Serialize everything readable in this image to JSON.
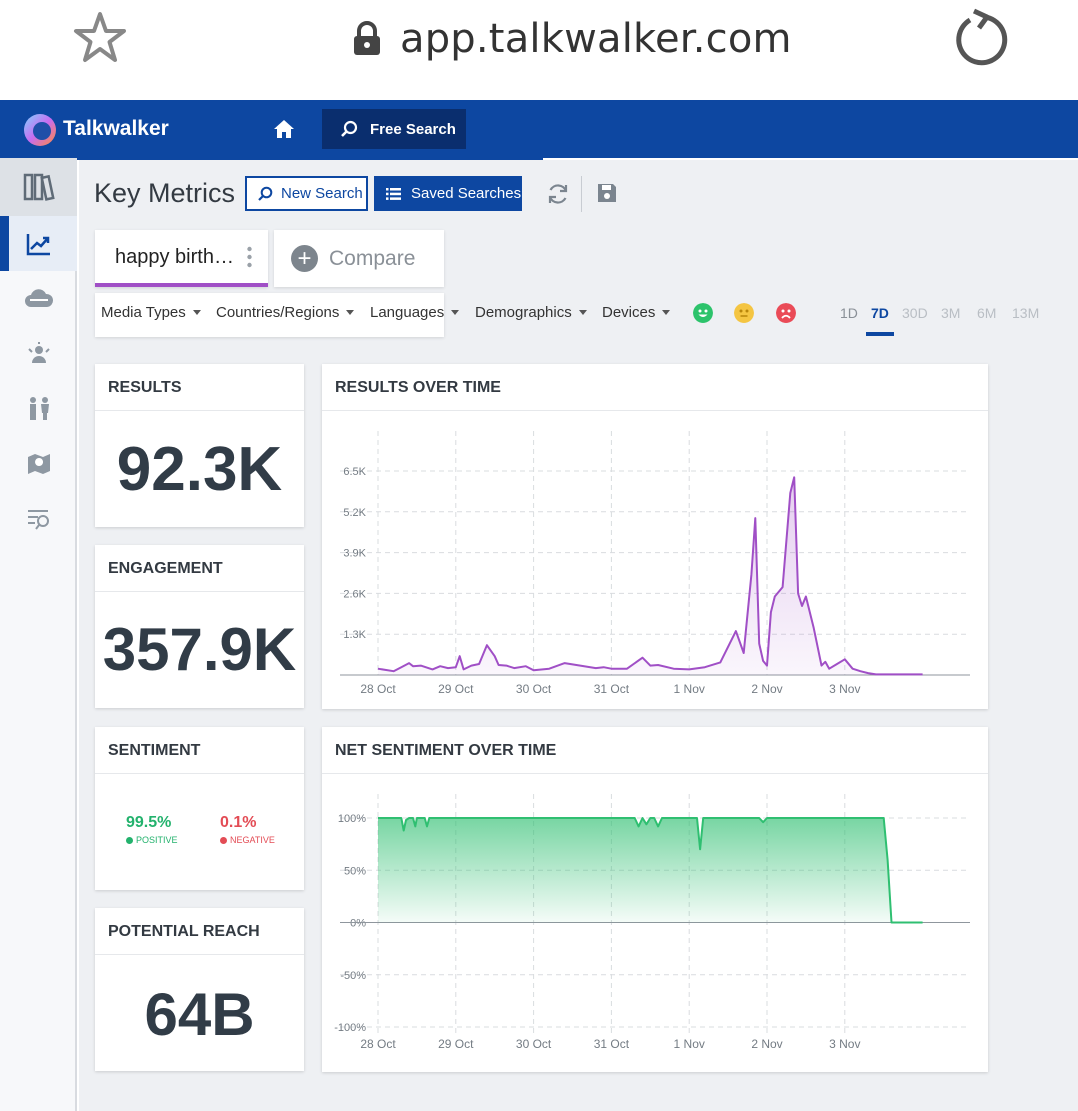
{
  "browser": {
    "url": "app.talkwalker.com"
  },
  "header": {
    "brand": "Talkwalker",
    "free_search_label": "Free Search"
  },
  "page": {
    "title": "Key Metrics",
    "new_search_label": "New Search",
    "saved_searches_label": "Saved Searches",
    "query_tab_label": "happy birth…",
    "compare_label": "Compare"
  },
  "filters": {
    "items": [
      "Media Types",
      "Countries/Regions",
      "Languages",
      "Demographics",
      "Devices"
    ],
    "sentiment_icons": [
      "positive-face-icon",
      "neutral-face-icon",
      "negative-face-icon"
    ],
    "ranges": [
      "1D",
      "7D",
      "30D",
      "3M",
      "6M",
      "13M"
    ],
    "active_range": "7D"
  },
  "metrics": {
    "results": {
      "title": "RESULTS",
      "value": "92.3K"
    },
    "engagement": {
      "title": "ENGAGEMENT",
      "value": "357.9K"
    },
    "sentiment": {
      "title": "SENTIMENT",
      "positive_value": "99.5%",
      "positive_label": "POSITIVE",
      "negative_value": "0.1%",
      "negative_label": "NEGATIVE"
    },
    "reach": {
      "title": "POTENTIAL REACH",
      "value": "64B"
    }
  },
  "colors": {
    "brand": "#0d47a1",
    "results_line": "#a04fc6",
    "sentiment_line": "#2fbf71",
    "positive": "#23b26d",
    "negative": "#e34c55"
  },
  "chart_data": [
    {
      "type": "area",
      "title": "RESULTS OVER TIME",
      "x_tick_labels": [
        "28 Oct",
        "29 Oct",
        "30 Oct",
        "31 Oct",
        "1 Nov",
        "2 Nov",
        "3 Nov"
      ],
      "y_tick_labels": [
        "1.3K",
        "2.6K",
        "3.9K",
        "5.2K",
        "6.5K"
      ],
      "ylim": [
        0,
        6500
      ],
      "xlim": [
        0,
        7.5
      ],
      "grid": true,
      "series": [
        {
          "x": [
            0,
            0.2,
            0.3,
            0.4,
            0.45,
            0.55,
            0.7,
            0.8,
            0.9,
            1.0,
            1.05,
            1.1,
            1.2,
            1.3,
            1.4,
            1.5,
            1.55,
            1.65,
            1.75,
            1.9,
            2.0,
            2.2,
            2.4,
            2.6,
            2.8,
            2.9,
            3.0,
            3.2,
            3.4,
            3.5,
            3.6,
            3.8,
            4.0,
            4.2,
            4.4,
            4.6,
            4.7,
            4.8,
            4.85,
            4.9,
            4.95,
            5.0,
            5.05,
            5.1,
            5.2,
            5.3,
            5.35,
            5.4,
            5.45,
            5.5,
            5.6,
            5.7,
            5.75,
            5.8,
            5.9,
            6.0,
            6.1,
            6.2,
            6.3,
            6.4,
            6.5,
            7.0
          ],
          "y": [
            200,
            120,
            250,
            380,
            280,
            300,
            180,
            280,
            220,
            250,
            600,
            180,
            300,
            350,
            950,
            600,
            320,
            300,
            220,
            280,
            150,
            200,
            380,
            300,
            220,
            250,
            200,
            200,
            550,
            300,
            320,
            200,
            180,
            250,
            400,
            1400,
            700,
            3200,
            5000,
            1000,
            450,
            300,
            2000,
            2500,
            2800,
            5800,
            6300,
            2600,
            2200,
            2500,
            1500,
            300,
            420,
            200,
            350,
            500,
            200,
            120,
            60,
            20,
            20,
            20
          ]
        }
      ]
    },
    {
      "type": "area",
      "title": "NET SENTIMENT OVER TIME",
      "x_tick_labels": [
        "28 Oct",
        "29 Oct",
        "30 Oct",
        "31 Oct",
        "1 Nov",
        "2 Nov",
        "3 Nov"
      ],
      "y_tick_labels": [
        "100%",
        "50%",
        "0%",
        "-50%",
        "-100%"
      ],
      "ylim": [
        -100,
        100
      ],
      "xlim": [
        0,
        7.5
      ],
      "grid": true,
      "series": [
        {
          "x": [
            0,
            0.3,
            0.33,
            0.36,
            0.4,
            0.45,
            0.48,
            0.5,
            0.55,
            0.6,
            0.63,
            0.66,
            0.7,
            3.3,
            3.35,
            3.4,
            3.45,
            3.5,
            3.55,
            3.6,
            3.65,
            3.7,
            4.1,
            4.14,
            4.18,
            4.22,
            4.3,
            4.9,
            4.95,
            5.0,
            6.5,
            6.55,
            6.6,
            7.0
          ],
          "y": [
            100,
            100,
            88,
            98,
            100,
            100,
            92,
            100,
            100,
            100,
            92,
            100,
            100,
            100,
            92,
            100,
            94,
            100,
            100,
            92,
            100,
            100,
            100,
            70,
            100,
            100,
            100,
            100,
            96,
            100,
            100,
            60,
            0,
            0
          ]
        }
      ]
    }
  ]
}
